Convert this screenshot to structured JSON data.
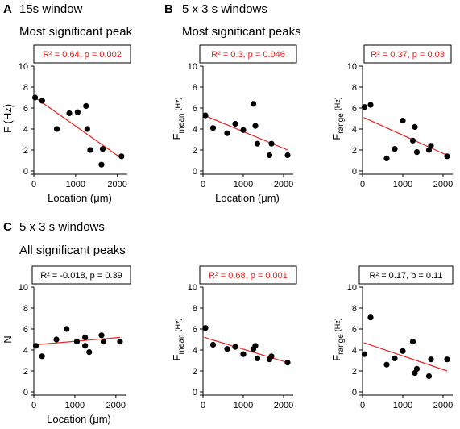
{
  "panel_labels": {
    "a": "A",
    "b": "B",
    "c": "C"
  },
  "panel_titles": {
    "a_line1": "15s window",
    "a_line2": "Most significant peak",
    "b_line1": "5 x 3 s windows",
    "b_line2": "Most significant peaks",
    "c_line1": "5 x 3 s windows",
    "c_line2": "All significant peaks"
  },
  "colors": {
    "points": "#000000",
    "fit_line": "#e8231f",
    "stat_red": "#e8231f",
    "stat_black": "#000000"
  },
  "chart_data": [
    {
      "id": "a",
      "type": "scatter",
      "ylabel_main": "F (Hz)",
      "ylabel_sub": "",
      "ylabel_unit": "",
      "xlabel": "Location (μm)",
      "xlim": [
        0,
        2200
      ],
      "ylim": [
        0,
        10
      ],
      "xticks": [
        "0",
        "1000",
        "2000"
      ],
      "yticks": [
        "0",
        "2",
        "4",
        "6",
        "8",
        "10"
      ],
      "stat_text": "R² = 0.64, p = 0.002",
      "stat_color": "red",
      "points": [
        [
          30,
          7.0
        ],
        [
          200,
          6.7
        ],
        [
          550,
          4.0
        ],
        [
          850,
          5.5
        ],
        [
          1050,
          5.6
        ],
        [
          1250,
          6.2
        ],
        [
          1280,
          4.0
        ],
        [
          1350,
          2.0
        ],
        [
          1620,
          0.6
        ],
        [
          1650,
          2.1
        ],
        [
          2100,
          1.4
        ]
      ],
      "fit": [
        [
          30,
          7.0
        ],
        [
          2100,
          1.2
        ]
      ]
    },
    {
      "id": "b1",
      "type": "scatter",
      "ylabel_main": "F",
      "ylabel_sub": "mean",
      "ylabel_unit": "(Hz)",
      "xlabel": "Location (μm)",
      "xlim": [
        0,
        2200
      ],
      "ylim": [
        0,
        10
      ],
      "xticks": [
        "0",
        "1000",
        "2000"
      ],
      "yticks": [
        "0",
        "2",
        "4",
        "6",
        "8",
        "10"
      ],
      "stat_text": "R² = 0.3, p = 0.046",
      "stat_color": "red",
      "points": [
        [
          60,
          5.3
        ],
        [
          250,
          4.1
        ],
        [
          600,
          3.6
        ],
        [
          800,
          4.5
        ],
        [
          1000,
          3.9
        ],
        [
          1250,
          6.4
        ],
        [
          1300,
          4.3
        ],
        [
          1350,
          2.6
        ],
        [
          1650,
          1.5
        ],
        [
          1700,
          2.6
        ],
        [
          2100,
          1.5
        ]
      ],
      "fit": [
        [
          30,
          5.3
        ],
        [
          2100,
          2.0
        ]
      ]
    },
    {
      "id": "b2",
      "type": "scatter",
      "ylabel_main": "F",
      "ylabel_sub": "range",
      "ylabel_unit": "(Hz)",
      "xlabel": "",
      "xlim": [
        0,
        2200
      ],
      "ylim": [
        0,
        10
      ],
      "xticks": [
        "0",
        "1000",
        "2000"
      ],
      "yticks": [
        "0",
        "2",
        "4",
        "6",
        "8",
        "10"
      ],
      "stat_text": "R² = 0.37, p = 0.03",
      "stat_color": "red",
      "points": [
        [
          50,
          6.1
        ],
        [
          200,
          6.3
        ],
        [
          600,
          1.2
        ],
        [
          800,
          2.1
        ],
        [
          1000,
          4.8
        ],
        [
          1250,
          2.9
        ],
        [
          1300,
          4.2
        ],
        [
          1350,
          1.8
        ],
        [
          1650,
          2.0
        ],
        [
          1700,
          2.4
        ],
        [
          2100,
          1.4
        ]
      ],
      "fit": [
        [
          30,
          5.1
        ],
        [
          2100,
          1.5
        ]
      ]
    },
    {
      "id": "c1",
      "type": "scatter",
      "ylabel_main": "N",
      "ylabel_sub": "",
      "ylabel_unit": "",
      "xlabel": "Location (μm)",
      "xlim": [
        0,
        2200
      ],
      "ylim": [
        0,
        10
      ],
      "xticks": [
        "0",
        "1000",
        "2000"
      ],
      "yticks": [
        "0",
        "2",
        "4",
        "6",
        "8",
        "10"
      ],
      "stat_text": "R² = -0.018, p = 0.39",
      "stat_color": "black",
      "points": [
        [
          50,
          4.4
        ],
        [
          200,
          3.4
        ],
        [
          550,
          5.0
        ],
        [
          800,
          6.0
        ],
        [
          1050,
          4.8
        ],
        [
          1250,
          5.2
        ],
        [
          1250,
          4.4
        ],
        [
          1350,
          3.8
        ],
        [
          1650,
          5.4
        ],
        [
          1700,
          4.8
        ],
        [
          2100,
          4.8
        ]
      ],
      "fit": [
        [
          30,
          4.5
        ],
        [
          2100,
          5.2
        ]
      ]
    },
    {
      "id": "c2",
      "type": "scatter",
      "ylabel_main": "F",
      "ylabel_sub": "mean",
      "ylabel_unit": "(Hz)",
      "xlabel": "",
      "xlim": [
        0,
        2200
      ],
      "ylim": [
        0,
        10
      ],
      "xticks": [
        "0",
        "1000",
        "2000"
      ],
      "yticks": [
        "0",
        "2",
        "4",
        "6",
        "8",
        "10"
      ],
      "stat_text": "R² = 0.68, p = 0.001",
      "stat_color": "red",
      "points": [
        [
          60,
          6.1
        ],
        [
          250,
          4.5
        ],
        [
          600,
          4.1
        ],
        [
          800,
          4.3
        ],
        [
          1000,
          3.6
        ],
        [
          1250,
          4.1
        ],
        [
          1300,
          4.4
        ],
        [
          1350,
          3.2
        ],
        [
          1650,
          3.1
        ],
        [
          1700,
          3.4
        ],
        [
          2100,
          2.8
        ]
      ],
      "fit": [
        [
          30,
          5.2
        ],
        [
          2100,
          2.8
        ]
      ]
    },
    {
      "id": "c3",
      "type": "scatter",
      "ylabel_main": "F",
      "ylabel_sub": "range",
      "ylabel_unit": "(Hz)",
      "xlabel": "",
      "xlim": [
        0,
        2200
      ],
      "ylim": [
        0,
        10
      ],
      "xticks": [
        "0",
        "1000",
        "2000"
      ],
      "yticks": [
        "0",
        "2",
        "4",
        "6",
        "8",
        "10"
      ],
      "stat_text": "R² = 0.17, p = 0.11",
      "stat_color": "black",
      "points": [
        [
          50,
          3.6
        ],
        [
          200,
          7.1
        ],
        [
          600,
          2.6
        ],
        [
          800,
          3.2
        ],
        [
          1000,
          3.9
        ],
        [
          1250,
          4.8
        ],
        [
          1300,
          1.8
        ],
        [
          1350,
          2.2
        ],
        [
          1650,
          1.5
        ],
        [
          1700,
          3.1
        ],
        [
          2100,
          3.1
        ]
      ],
      "fit": [
        [
          30,
          4.7
        ],
        [
          2100,
          2.0
        ]
      ]
    }
  ]
}
